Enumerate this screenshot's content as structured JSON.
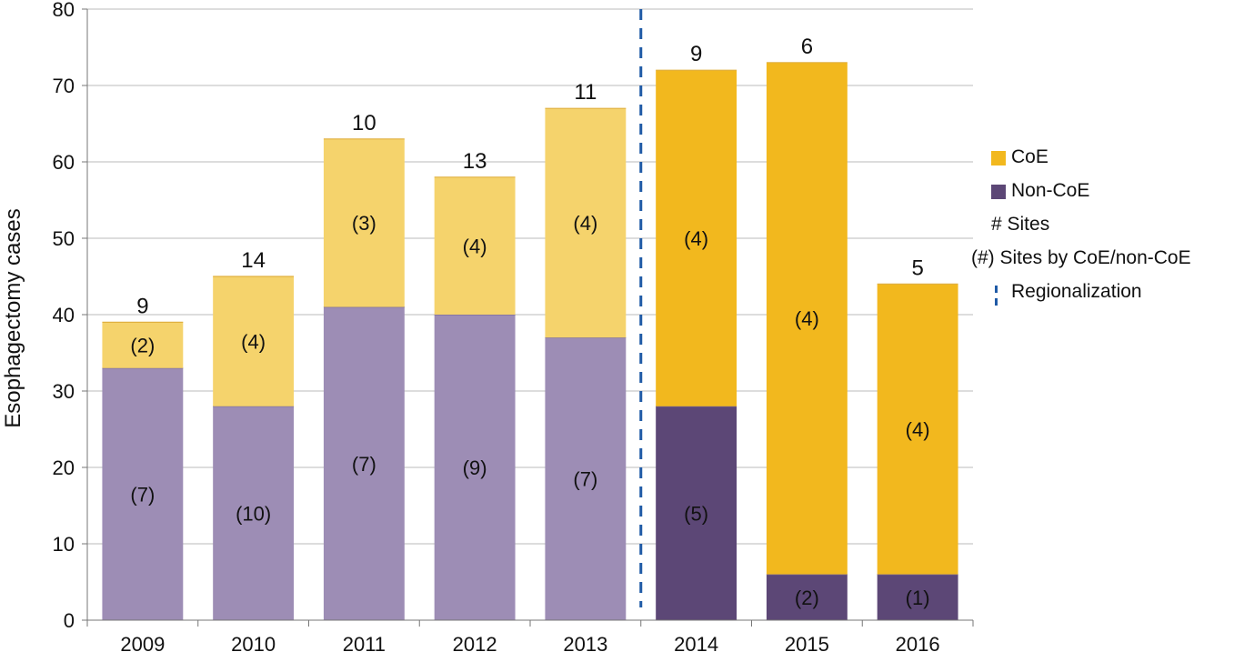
{
  "chart_data": {
    "type": "bar",
    "stacked": true,
    "ylabel": "Esophagectomy cases",
    "xlabel": "",
    "ylim": [
      0,
      80
    ],
    "yticks": [
      0,
      10,
      20,
      30,
      40,
      50,
      60,
      70,
      80
    ],
    "categories": [
      "2009",
      "2010",
      "2011",
      "2012",
      "2013",
      "2014",
      "2015",
      "2016"
    ],
    "series": [
      {
        "name": "Non-CoE",
        "values": [
          33,
          28,
          41,
          40,
          37,
          28,
          6,
          6
        ],
        "labels": [
          "(7)",
          "(10)",
          "(7)",
          "(9)",
          "(7)",
          "(5)",
          "(2)",
          "(1)"
        ],
        "colors": [
          "#9d8db5",
          "#9d8db5",
          "#9d8db5",
          "#9d8db5",
          "#9d8db5",
          "#5c4776",
          "#5c4776",
          "#5c4776"
        ]
      },
      {
        "name": "CoE",
        "values": [
          6,
          17,
          22,
          18,
          30,
          44,
          67,
          38
        ],
        "labels": [
          "(2)",
          "(4)",
          "(3)",
          "(4)",
          "(4)",
          "(4)",
          "(4)",
          "(4)"
        ],
        "colors": [
          "#f5d36c",
          "#f5d36c",
          "#f5d36c",
          "#f5d36c",
          "#f5d36c",
          "#f2b81e",
          "#f2b81e",
          "#f2b81e"
        ]
      }
    ],
    "total_sites": [
      "9",
      "14",
      "10",
      "13",
      "11",
      "9",
      "6",
      "5"
    ],
    "regionalization_after": "2013",
    "grid": true,
    "legend_position": "right"
  },
  "legend": {
    "coe": {
      "label": "CoE",
      "color": "#f2b81e"
    },
    "non_coe": {
      "label": "Non-CoE",
      "color": "#5c4776"
    },
    "sites": "# Sites",
    "sites_by": "(#) Sites by CoE/non-CoE",
    "regionalization": "Regionalization"
  },
  "colors": {
    "regionalization_line": "#1f5aa6",
    "grid": "#bbbbbb"
  }
}
